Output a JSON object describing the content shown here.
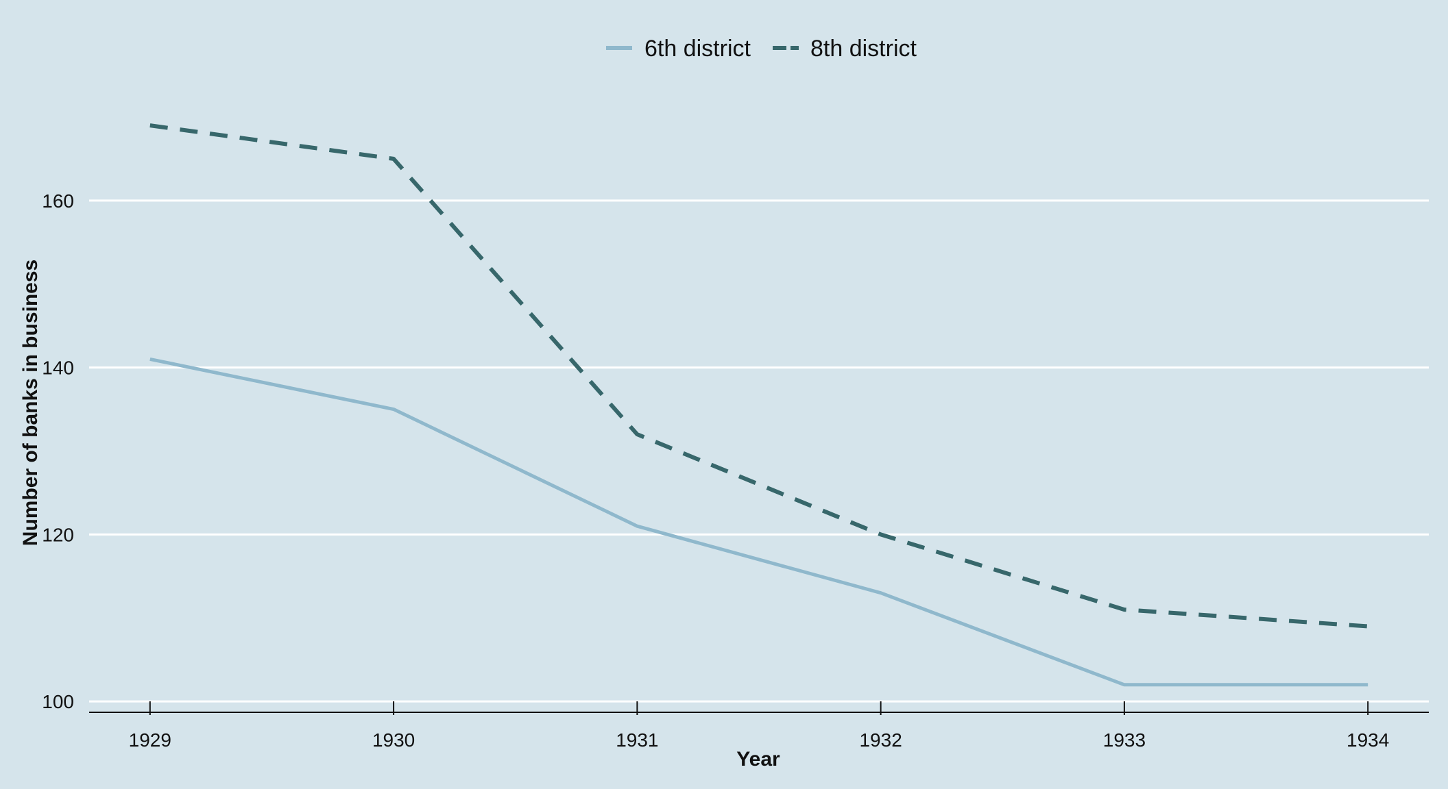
{
  "chart_data": {
    "type": "line",
    "xlabel": "Year",
    "ylabel": "Number of banks in business",
    "x": [
      1929,
      1930,
      1931,
      1932,
      1933,
      1934
    ],
    "x_tick_labels": [
      "1929",
      "1930",
      "1931",
      "1932",
      "1933",
      "1934"
    ],
    "y_ticks": [
      100,
      120,
      140,
      160
    ],
    "y_tick_labels": [
      "100",
      "120",
      "140",
      "160"
    ],
    "xlim": [
      1928.75,
      1934.25
    ],
    "ylim": [
      98.7,
      175
    ],
    "grid": "horizontal",
    "legend_position": "top",
    "series": [
      {
        "name": "6th district",
        "values": [
          141,
          135,
          121,
          113,
          102,
          102
        ],
        "color": "#8fb8cc",
        "style": "solid"
      },
      {
        "name": "8th district",
        "values": [
          169,
          165,
          132,
          120,
          111,
          109
        ],
        "color": "#37676b",
        "style": "dashed"
      }
    ],
    "colors": {
      "background": "#d5e4eb",
      "grid": "#ffffff",
      "axis": "#111111"
    }
  }
}
